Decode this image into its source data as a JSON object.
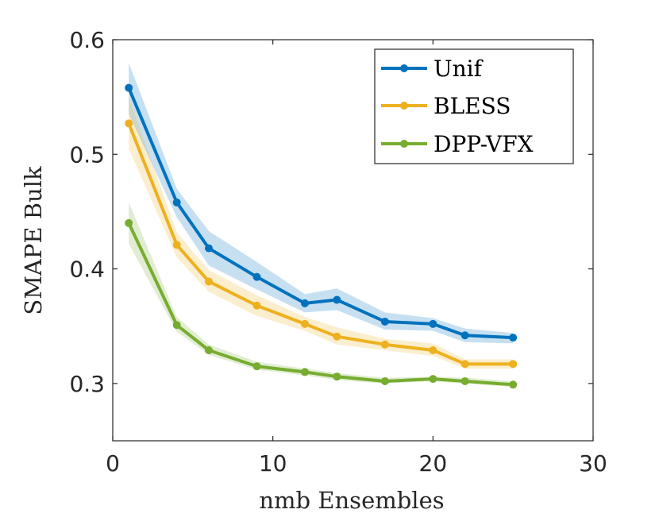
{
  "chart_data": {
    "type": "line",
    "title": "",
    "xlabel": "nmb Ensembles",
    "ylabel": "SMAPE Bulk",
    "xlim": [
      0,
      30
    ],
    "ylim": [
      0.25,
      0.6
    ],
    "xticks": [
      0,
      10,
      20,
      30
    ],
    "xtick_labels": [
      "0",
      "10",
      "20",
      "30"
    ],
    "yticks": [
      0.3,
      0.4,
      0.5,
      0.6
    ],
    "ytick_labels": [
      "0.3",
      "0.4",
      "0.5",
      "0.6"
    ],
    "grid": false,
    "legend_position": "top-right",
    "x": [
      1,
      4,
      6,
      9,
      12,
      14,
      17,
      20,
      22,
      25
    ],
    "series": [
      {
        "name": "Unif",
        "color": "#0072BD",
        "values": [
          0.558,
          0.458,
          0.418,
          0.393,
          0.37,
          0.373,
          0.354,
          0.352,
          0.342,
          0.34
        ],
        "lower": [
          0.535,
          0.445,
          0.403,
          0.382,
          0.362,
          0.364,
          0.347,
          0.346,
          0.336,
          0.335
        ],
        "upper": [
          0.58,
          0.47,
          0.433,
          0.406,
          0.378,
          0.383,
          0.362,
          0.357,
          0.348,
          0.344
        ]
      },
      {
        "name": "BLESS",
        "color": "#EDB120",
        "values": [
          0.527,
          0.421,
          0.389,
          0.368,
          0.352,
          0.341,
          0.334,
          0.329,
          0.317,
          0.317
        ],
        "lower": [
          0.505,
          0.41,
          0.38,
          0.359,
          0.346,
          0.334,
          0.329,
          0.324,
          0.313,
          0.313
        ],
        "upper": [
          0.55,
          0.432,
          0.399,
          0.377,
          0.358,
          0.349,
          0.339,
          0.335,
          0.321,
          0.321
        ]
      },
      {
        "name": "DPP-VFX",
        "color": "#77AC30",
        "values": [
          0.44,
          0.351,
          0.329,
          0.315,
          0.31,
          0.306,
          0.302,
          0.304,
          0.302,
          0.299
        ],
        "lower": [
          0.422,
          0.345,
          0.325,
          0.312,
          0.307,
          0.303,
          0.3,
          0.302,
          0.3,
          0.297
        ],
        "upper": [
          0.458,
          0.358,
          0.334,
          0.319,
          0.313,
          0.309,
          0.305,
          0.306,
          0.305,
          0.302
        ]
      }
    ]
  }
}
